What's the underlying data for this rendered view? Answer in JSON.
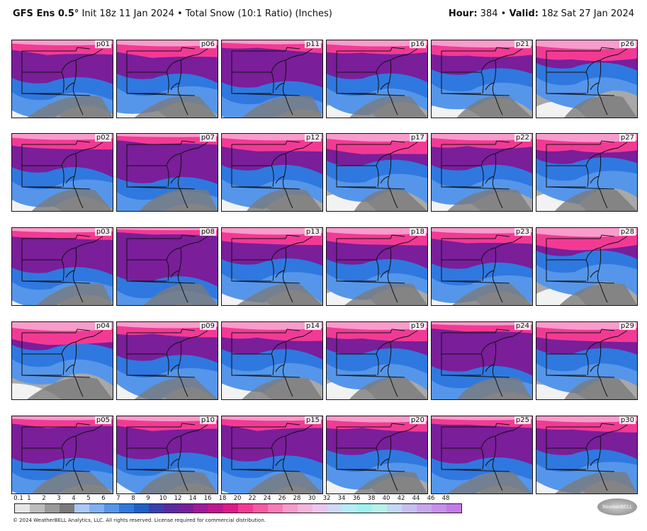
{
  "header": {
    "left_bold": "GFS Ens 0.5",
    "left_deg": "°",
    "left_rest": " Init 18z 11 Jan 2024 • Total Snow (10:1 Ratio) (Inches)",
    "right_hour_label": "Hour:",
    "right_hour_value": " 384 • ",
    "right_valid_label": "Valid:",
    "right_valid_value": " 18z Sat 27 Jan 2024"
  },
  "panels": [
    [
      "p01",
      "p06",
      "p11",
      "p16",
      "p21",
      "p26"
    ],
    [
      "p02",
      "p07",
      "p12",
      "p17",
      "p22",
      "p27"
    ],
    [
      "p03",
      "p08",
      "p13",
      "p18",
      "p23",
      "p28"
    ],
    [
      "p04",
      "p09",
      "p14",
      "p19",
      "p24",
      "p29"
    ],
    [
      "p05",
      "p10",
      "p15",
      "p20",
      "p25",
      "p30"
    ]
  ],
  "panel_snow_intensity": [
    [
      0.45,
      0.55,
      0.35,
      0.55,
      0.65,
      0.8
    ],
    [
      0.55,
      0.3,
      0.6,
      0.7,
      0.6,
      0.75
    ],
    [
      0.4,
      0.2,
      0.6,
      0.6,
      0.5,
      0.8
    ],
    [
      0.8,
      0.55,
      0.7,
      0.7,
      0.3,
      0.7
    ],
    [
      0.35,
      0.45,
      0.4,
      0.55,
      0.35,
      0.55
    ]
  ],
  "colorbar": {
    "ticks": [
      "0.1",
      "1",
      "2",
      "3",
      "4",
      "5",
      "6",
      "7",
      "8",
      "9",
      "10",
      "12",
      "14",
      "16",
      "18",
      "20",
      "22",
      "24",
      "26",
      "28",
      "30",
      "32",
      "34",
      "36",
      "38",
      "40",
      "42",
      "44",
      "46",
      "48"
    ],
    "colors": [
      "#e6e6e6",
      "#bdbdbd",
      "#9a9a9a",
      "#7a7a7a",
      "#a9c8f5",
      "#7fb0f0",
      "#5596ea",
      "#2f78e0",
      "#1f5fc8",
      "#3a3fb0",
      "#5a2aa0",
      "#7a1e9a",
      "#9e1a9a",
      "#c01890",
      "#e0198a",
      "#f23a95",
      "#f55aa3",
      "#f77cb6",
      "#f79ccb",
      "#f4b5dc",
      "#e9c7ee",
      "#cfd9f5",
      "#b5ecf5",
      "#9ff1ef",
      "#b8f0ea",
      "#c3d8f2",
      "#c6c0f0",
      "#c8a7ee",
      "#c690ec",
      "#c47ae8"
    ]
  },
  "footer": "© 2024 WeatherBELL Analytics, LLC. All rights reserved. License required for commercial distribution.",
  "logo_text": "WeatherBELL"
}
